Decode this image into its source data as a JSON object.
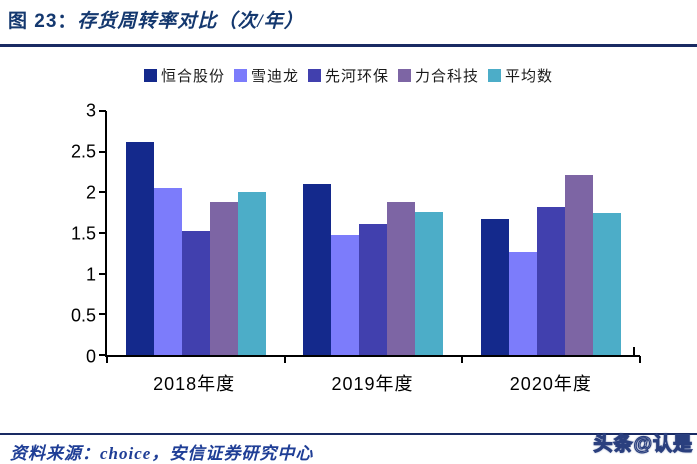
{
  "figure": {
    "title_prefix": "图 23：",
    "title_main": "存货周转率对比（次/年）"
  },
  "source": {
    "label": "资料来源：choice，安信证券研究中心"
  },
  "watermark": {
    "label": "头条@认是"
  },
  "colors": {
    "title_navy": "#14386F",
    "rule_navy": "#192A63",
    "axis_black": "#000000",
    "source_blue": "#1F3E96"
  },
  "chart_data": {
    "type": "bar",
    "title": "存货周转率对比（次/年）",
    "categories": [
      "2018年度",
      "2019年度",
      "2020年度"
    ],
    "series": [
      {
        "name": "恒合股份",
        "color": "#14298C",
        "values": [
          2.62,
          2.1,
          1.67
        ]
      },
      {
        "name": "雪迪龙",
        "color": "#7C7CFB",
        "values": [
          2.05,
          1.48,
          1.27
        ]
      },
      {
        "name": "先河环保",
        "color": "#4140AE",
        "values": [
          1.53,
          1.61,
          1.82
        ]
      },
      {
        "name": "力合科技",
        "color": "#7D65A4",
        "values": [
          1.88,
          1.88,
          2.21
        ]
      },
      {
        "name": "平均数",
        "color": "#4CADC8",
        "values": [
          2.01,
          1.76,
          1.74
        ]
      }
    ],
    "ylim": [
      0,
      3
    ],
    "yticks": [
      0,
      0.5,
      1,
      1.5,
      2,
      2.5,
      3
    ],
    "xlabel": "",
    "ylabel": "",
    "grid": false,
    "legend_position": "top"
  }
}
